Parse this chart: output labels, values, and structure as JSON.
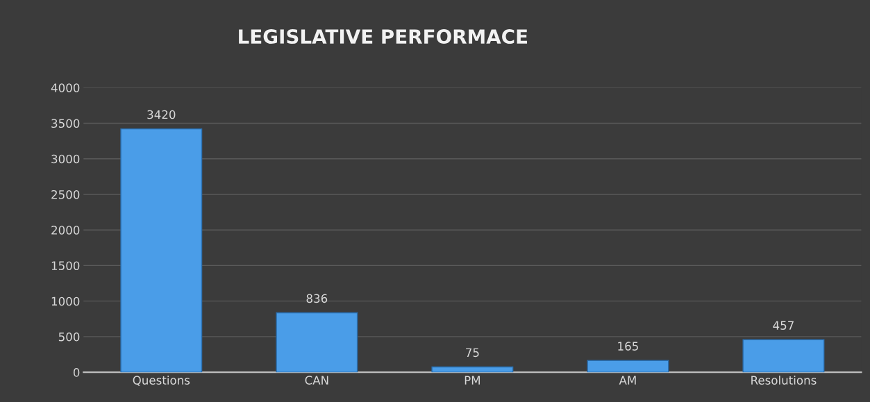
{
  "chart_data": {
    "type": "bar",
    "title": "LEGISLATIVE PERFORMACE",
    "categories": [
      "Questions",
      "CAN",
      "PM",
      "AM",
      "Resolutions"
    ],
    "values": [
      3420,
      836,
      75,
      165,
      457
    ],
    "color": "#4a9de8",
    "ylim": [
      0,
      4000
    ],
    "yticks": [
      0,
      500,
      1000,
      1500,
      2000,
      2500,
      3000,
      3500,
      4000
    ],
    "grid": "y",
    "data_labels": true
  }
}
